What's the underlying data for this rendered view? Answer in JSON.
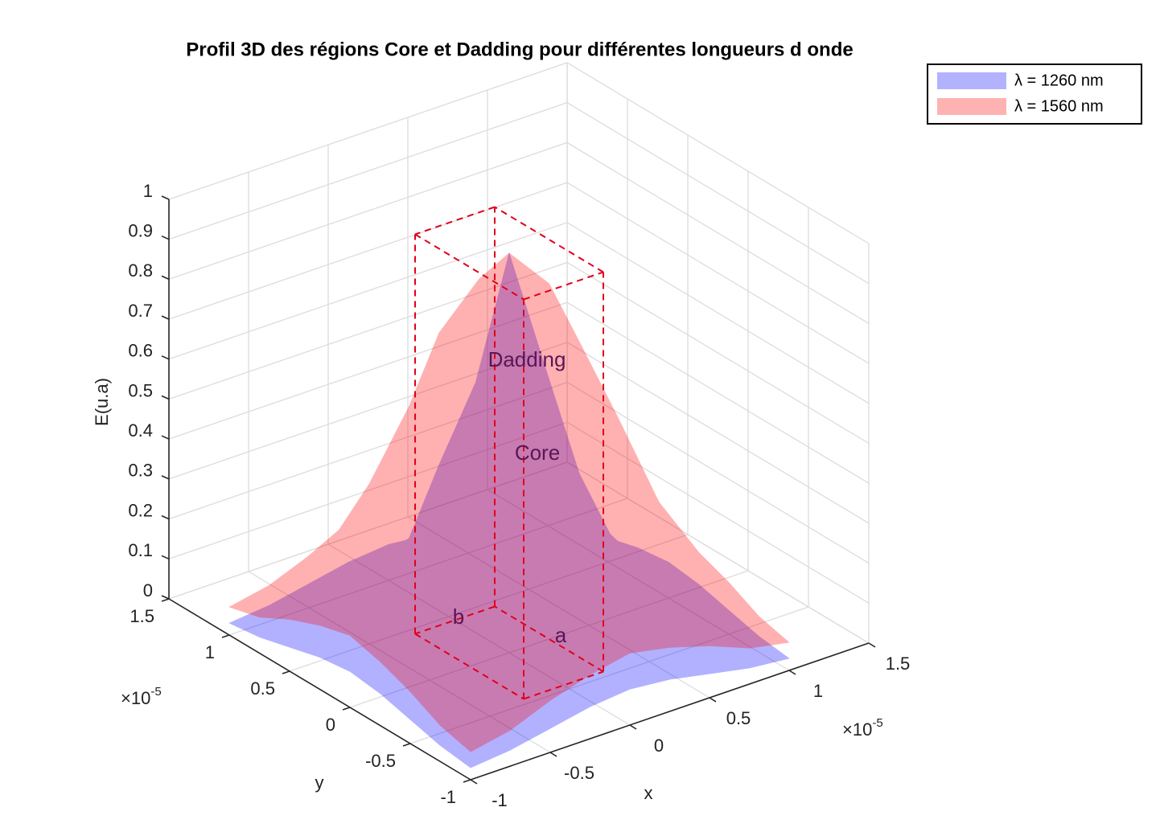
{
  "chart_data": {
    "type": "surface3d",
    "title": "Profil 3D des régions Core et Dadding pour différentes longueurs d onde",
    "xlabel": "x",
    "ylabel": "y",
    "zlabel": "E(u.a)",
    "x_multiplier": {
      "base": "×10",
      "exponent": "-5"
    },
    "y_multiplier": {
      "base": "×10",
      "exponent": "-5"
    },
    "xlim": [
      -1e-05,
      1.5e-05
    ],
    "ylim": [
      -1e-05,
      1.5e-05
    ],
    "zlim": [
      0,
      1
    ],
    "xticks": [
      {
        "value": -1e-05,
        "label": "-1"
      },
      {
        "value": -5e-06,
        "label": "-0.5"
      },
      0,
      {
        "value": 5e-06,
        "label": "0.5"
      },
      {
        "value": 1e-05,
        "label": "1"
      },
      {
        "value": 1.5e-05,
        "label": "1.5"
      }
    ],
    "yticks": [
      {
        "value": -1e-05,
        "label": "-1"
      },
      {
        "value": -5e-06,
        "label": "-0.5"
      },
      0,
      {
        "value": 5e-06,
        "label": "0.5"
      },
      {
        "value": 1e-05,
        "label": "1"
      },
      {
        "value": 1.5e-05,
        "label": "1.5"
      }
    ],
    "zticks": [
      0,
      0.1,
      0.2,
      0.3,
      0.4,
      0.5,
      0.6,
      0.7,
      0.8,
      0.9,
      1
    ],
    "grid": true,
    "x": [
      -1e-05,
      -7.5e-06,
      -5e-06,
      -2.5e-06,
      0,
      2.5e-06,
      5e-06,
      7.5e-06,
      1e-05
    ],
    "y": [
      -1e-05,
      -7.5e-06,
      -5e-06,
      -2.5e-06,
      0,
      2.5e-06,
      5e-06,
      7.5e-06,
      1e-05
    ],
    "series": [
      {
        "name": "λ = 1260 nm",
        "color": "#0000ff",
        "alpha": 0.3,
        "values": [
          [
            0.03,
            0.04,
            0.06,
            0.08,
            0.09,
            0.08,
            0.06,
            0.04,
            0.03
          ],
          [
            0.04,
            0.07,
            0.11,
            0.14,
            0.15,
            0.14,
            0.11,
            0.07,
            0.04
          ],
          [
            0.06,
            0.11,
            0.17,
            0.23,
            0.28,
            0.23,
            0.17,
            0.11,
            0.06
          ],
          [
            0.08,
            0.14,
            0.23,
            0.46,
            0.65,
            0.46,
            0.23,
            0.14,
            0.08
          ],
          [
            0.09,
            0.15,
            0.28,
            0.65,
            1,
            0.65,
            0.28,
            0.15,
            0.09
          ],
          [
            0.08,
            0.14,
            0.23,
            0.46,
            0.65,
            0.46,
            0.23,
            0.14,
            0.08
          ],
          [
            0.06,
            0.11,
            0.17,
            0.23,
            0.28,
            0.23,
            0.17,
            0.11,
            0.06
          ],
          [
            0.04,
            0.07,
            0.11,
            0.14,
            0.15,
            0.14,
            0.11,
            0.07,
            0.04
          ],
          [
            0.03,
            0.04,
            0.06,
            0.08,
            0.09,
            0.08,
            0.06,
            0.04,
            0.03
          ]
        ]
      },
      {
        "name": "λ = 1560 nm",
        "color": "#ff0000",
        "alpha": 0.3,
        "values": [
          [
            0.07,
            0.09,
            0.13,
            0.16,
            0.18,
            0.16,
            0.13,
            0.09,
            0.07
          ],
          [
            0.09,
            0.15,
            0.24,
            0.32,
            0.36,
            0.32,
            0.24,
            0.15,
            0.09
          ],
          [
            0.13,
            0.24,
            0.4,
            0.56,
            0.63,
            0.56,
            0.4,
            0.24,
            0.13
          ],
          [
            0.16,
            0.32,
            0.56,
            0.79,
            0.89,
            0.79,
            0.56,
            0.32,
            0.16
          ],
          [
            0.18,
            0.36,
            0.63,
            0.89,
            1,
            0.89,
            0.63,
            0.36,
            0.18
          ],
          [
            0.16,
            0.32,
            0.56,
            0.79,
            0.89,
            0.79,
            0.56,
            0.32,
            0.16
          ],
          [
            0.13,
            0.24,
            0.4,
            0.56,
            0.63,
            0.56,
            0.4,
            0.24,
            0.13
          ],
          [
            0.09,
            0.15,
            0.24,
            0.32,
            0.36,
            0.32,
            0.24,
            0.15,
            0.09
          ],
          [
            0.07,
            0.09,
            0.13,
            0.16,
            0.18,
            0.16,
            0.13,
            0.09,
            0.07
          ]
        ]
      }
    ],
    "core_box": {
      "xlim": [
        -2.5e-06,
        2.5e-06
      ],
      "ylim": [
        -4.5e-06,
        4.5e-06
      ],
      "zlim": [
        0,
        1
      ],
      "color": "#e0001a"
    },
    "annotations": [
      "Dadding",
      "Core",
      "b",
      "a"
    ],
    "annotation_color": "#5a1656",
    "legend": "northeast"
  }
}
